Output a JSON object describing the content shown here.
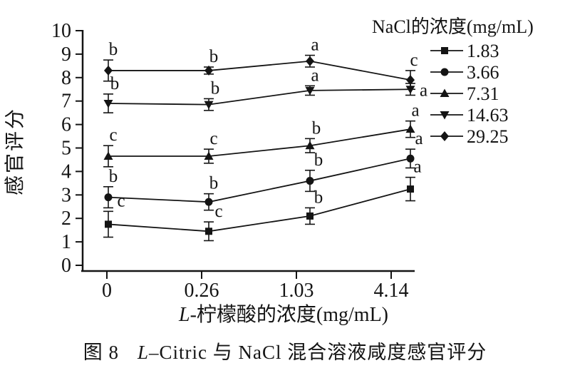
{
  "chart_data": {
    "type": "line",
    "title": "",
    "x_categories": [
      "0",
      "0.26",
      "1.03",
      "4.14"
    ],
    "xlabel_italic": "L",
    "xlabel_rest": "-柠檬酸的浓度(mg/mL)",
    "ylabel": "感官评分",
    "ylim": [
      0,
      10
    ],
    "ytick_step": 1,
    "grid": "off",
    "legend_position": "top-right",
    "legend_title": "NaCl的浓度(mg/mL)",
    "line_color": "#141414",
    "series": [
      {
        "name": "1.83",
        "marker": "square",
        "values": [
          1.75,
          1.45,
          2.1,
          3.25
        ],
        "errors": [
          0.55,
          0.4,
          0.35,
          0.5
        ],
        "letters": [
          "c",
          "c",
          "b",
          "a"
        ],
        "letter_pos": [
          "above",
          "above",
          "above",
          "above"
        ],
        "letter_dx": [
          18,
          14,
          12,
          10
        ]
      },
      {
        "name": "3.66",
        "marker": "circle",
        "values": [
          2.9,
          2.7,
          3.6,
          4.55
        ],
        "errors": [
          0.45,
          0.35,
          0.45,
          0.4
        ],
        "letters": [
          "b",
          "b",
          "b",
          "a"
        ],
        "letter_pos": [
          "above",
          "above",
          "above",
          "above"
        ],
        "letter_dx": [
          7,
          7,
          12,
          12
        ]
      },
      {
        "name": "7.31",
        "marker": "triangle-up",
        "values": [
          4.65,
          4.65,
          5.1,
          5.8
        ],
        "errors": [
          0.45,
          0.3,
          0.3,
          0.35
        ],
        "letters": [
          "c",
          "c",
          "b",
          "a"
        ],
        "letter_pos": [
          "above",
          "above",
          "above",
          "above"
        ],
        "letter_dx": [
          7,
          7,
          9,
          7
        ]
      },
      {
        "name": "14.63",
        "marker": "triangle-down",
        "values": [
          6.9,
          6.85,
          7.45,
          7.5
        ],
        "errors": [
          0.4,
          0.25,
          0.2,
          0.25
        ],
        "letters": [
          "b",
          "b",
          "a",
          "a"
        ],
        "letter_pos": [
          "above",
          "above",
          "above",
          "right"
        ],
        "letter_dx": [
          9,
          9,
          7,
          13
        ]
      },
      {
        "name": "29.25",
        "marker": "diamond",
        "values": [
          8.3,
          8.3,
          8.7,
          7.9
        ],
        "errors": [
          0.45,
          0.15,
          0.25,
          0.4
        ],
        "letters": [
          "b",
          "b",
          "a",
          "c"
        ],
        "letter_pos": [
          "above",
          "above",
          "above",
          "above"
        ],
        "letter_dx": [
          7,
          7,
          7,
          5
        ]
      }
    ]
  },
  "caption": {
    "fig_label": "图 8",
    "italic": "L",
    "text": "–Citric 与 NaCl 混合溶液咸度感官评分"
  }
}
